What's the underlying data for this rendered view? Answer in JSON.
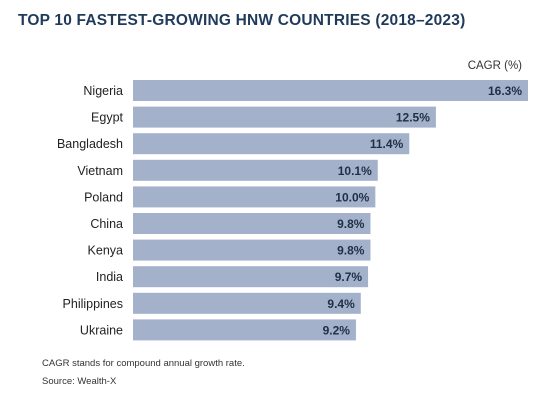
{
  "chart_data": {
    "type": "bar",
    "orientation": "horizontal",
    "title": "TOP 10 FASTEST-GROWING HNW COUNTRIES (2018–2023)",
    "unit_label": "CAGR (%)",
    "categories": [
      "Nigeria",
      "Egypt",
      "Bangladesh",
      "Vietnam",
      "Poland",
      "China",
      "Kenya",
      "India",
      "Philippines",
      "Ukraine"
    ],
    "values": [
      16.3,
      12.5,
      11.4,
      10.1,
      10.0,
      9.8,
      9.8,
      9.7,
      9.4,
      9.2
    ],
    "value_labels": [
      "16.3%",
      "12.5%",
      "11.4%",
      "10.1%",
      "10.0%",
      "9.8%",
      "9.8%",
      "9.7%",
      "9.4%",
      "9.2%"
    ],
    "xlim": [
      0,
      16.3
    ],
    "grid": false,
    "bar_color": "#a3b2ca",
    "footnote": "CAGR stands for compound annual growth rate.",
    "source": "Source: Wealth-X"
  }
}
